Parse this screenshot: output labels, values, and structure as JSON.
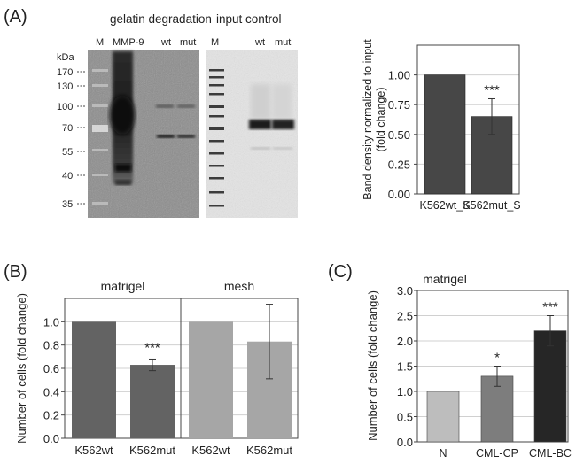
{
  "panels": {
    "a": "(A)",
    "b": "(B)",
    "c": "(C)"
  },
  "gels": {
    "left_title": "gelatin degradation",
    "right_title": "input control",
    "left_lanes": [
      "M",
      "MMP-9",
      "wt",
      "mut"
    ],
    "right_lanes": [
      "M",
      "wt",
      "mut"
    ],
    "kda_label": "kDa",
    "markers": [
      "170",
      "130",
      "100",
      "70",
      "55",
      "40",
      "35"
    ]
  },
  "colors": {
    "dark_bar": "#474747",
    "medium_bar": "#636363",
    "light_bar": "#a6a6a6",
    "c_n": "#bdbdbd",
    "c_cp": "#7d7d7d",
    "c_bc": "#262626"
  },
  "chart_data": [
    {
      "id": "A",
      "type": "bar",
      "categories": [
        "K562wt_S",
        "K562mut_S"
      ],
      "values": [
        1.0,
        0.65
      ],
      "errors": [
        0.005,
        0.15
      ],
      "ylim": [
        0,
        1.25
      ],
      "yticks": [
        "0.00",
        "0.25",
        "0.50",
        "0.75",
        "1.00"
      ],
      "ylabel_lines": [
        "Band density normalized to input",
        "(fold change)"
      ],
      "annotations": [
        "",
        "***"
      ],
      "grid": true
    },
    {
      "id": "B",
      "type": "bar",
      "subtitles": [
        "matrigel",
        "mesh"
      ],
      "categories": [
        "K562wt",
        "K562mut",
        "K562wt",
        "K562mut"
      ],
      "values": [
        1.0,
        0.63,
        1.0,
        0.83
      ],
      "errors": [
        0,
        0.05,
        0,
        0.32
      ],
      "ylim": [
        0,
        1.2
      ],
      "yticks": [
        "0.0",
        "0.2",
        "0.4",
        "0.6",
        "0.8",
        "1.0"
      ],
      "ylabel": "Number of cells (fold change)",
      "annotations": [
        "",
        "***",
        "",
        ""
      ],
      "grid": true
    },
    {
      "id": "C",
      "type": "bar",
      "subtitle": "matrigel",
      "categories": [
        "N",
        "CML-CP",
        "CML-BC"
      ],
      "values": [
        1.0,
        1.3,
        2.2
      ],
      "errors": [
        0.01,
        0.2,
        0.3
      ],
      "ylim": [
        0,
        3.0
      ],
      "yticks": [
        "0.0",
        "0.5",
        "1.0",
        "1.5",
        "2.0",
        "2.5",
        "3.0"
      ],
      "ylabel": "Number of cells (fold change)",
      "annotations": [
        "",
        "*",
        "***"
      ],
      "grid": true
    }
  ]
}
